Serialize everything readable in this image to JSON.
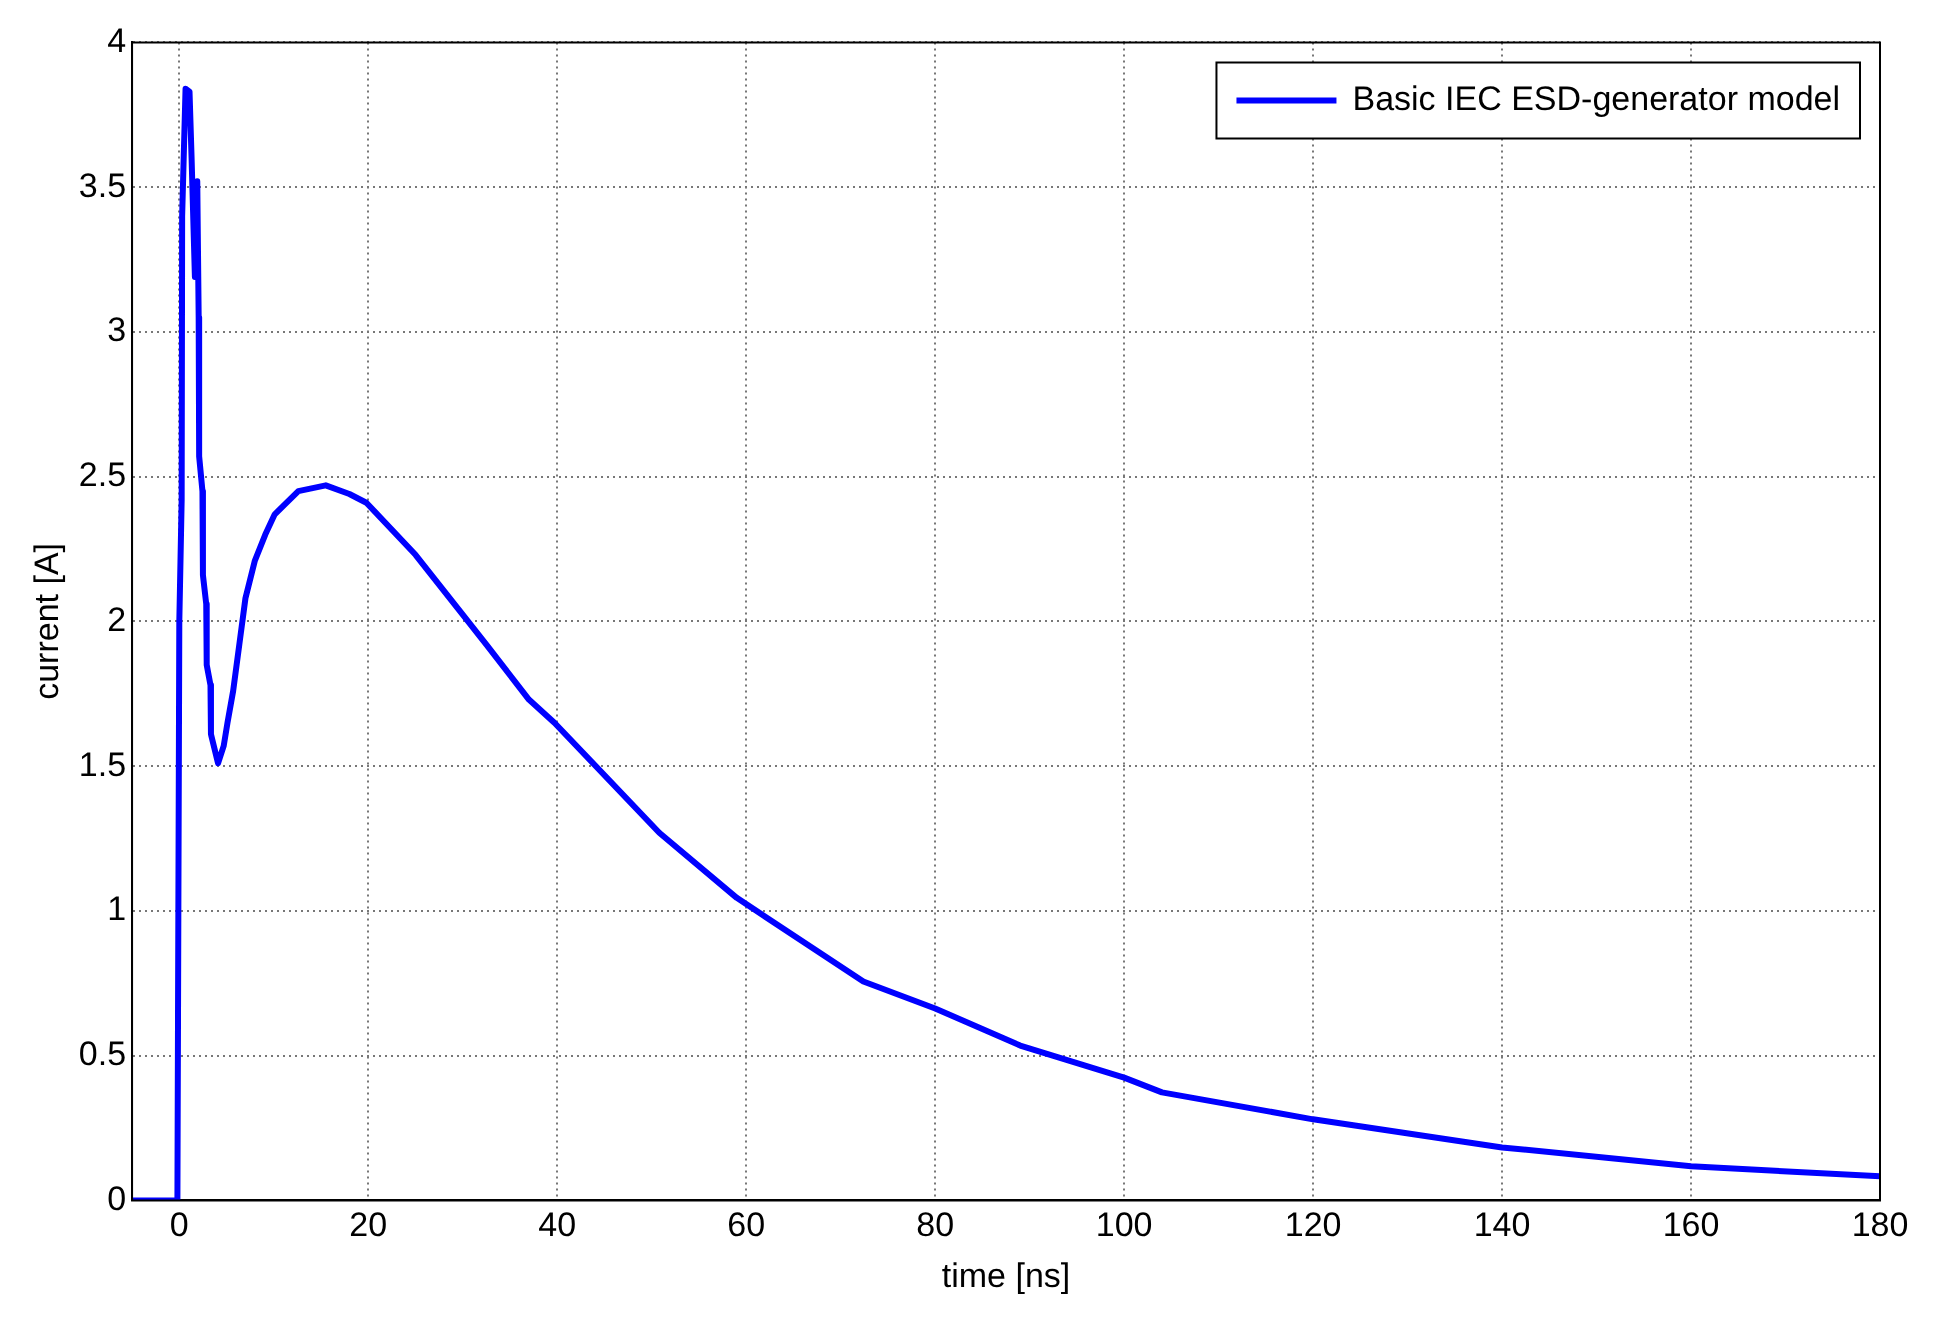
{
  "chart_data": {
    "type": "line",
    "xlabel": "time [ns]",
    "ylabel": "current [A]",
    "xlim": [
      -5,
      180
    ],
    "xticks": [
      0,
      20,
      40,
      60,
      80,
      100,
      120,
      140,
      160,
      180
    ],
    "ylim": [
      0,
      4
    ],
    "yticks": [
      0,
      0.5,
      1,
      1.5,
      2,
      2.5,
      3,
      3.5,
      4
    ],
    "grid": true,
    "legend": "top right",
    "line_style": "solid",
    "marker": "none",
    "series": [
      {
        "name": "Basic IEC ESD-generator model",
        "color": "#0000ff",
        "x": [
          -5,
          -0.2,
          0,
          0.25,
          0.3,
          0.66,
          1.08,
          1.3,
          1.65,
          1.9,
          2.05,
          2.1,
          2.45,
          2.5,
          2.85,
          2.9,
          3.3,
          3.35,
          4.1,
          4.7,
          5.1,
          5.7,
          6.35,
          7.0,
          8.0,
          9.1,
          10.1,
          12.6,
          15.5,
          18.0,
          19.8,
          25.0,
          29.6,
          32.5,
          37.0,
          39.7,
          50.8,
          59.0,
          72.4,
          80,
          89.0,
          100,
          104,
          120,
          140,
          160,
          180
        ],
        "values": [
          0,
          0,
          2.0,
          2.42,
          3.4,
          3.84,
          3.83,
          3.6,
          3.19,
          3.52,
          3.05,
          2.57,
          2.45,
          2.16,
          2.06,
          1.85,
          1.78,
          1.61,
          1.51,
          1.57,
          1.65,
          1.76,
          1.92,
          2.08,
          2.21,
          2.3,
          2.37,
          2.45,
          2.47,
          2.44,
          2.41,
          2.23,
          2.04,
          1.92,
          1.73,
          1.65,
          1.27,
          1.045,
          0.756,
          0.663,
          0.535,
          0.424,
          0.373,
          0.28,
          0.183,
          0.118,
          0.083
        ]
      }
    ]
  }
}
